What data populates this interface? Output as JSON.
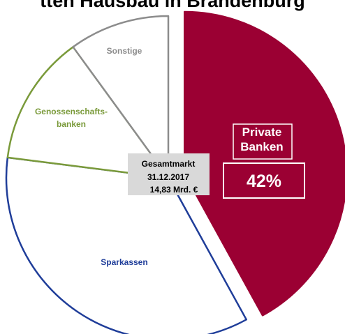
{
  "chart_data": {
    "type": "pie",
    "title": "Marktanteile Kreditinstitute: Kredite an Kunden Neubau/Ausbau Hausbau in Brandenburg",
    "visible_title": "tten Hausbau in Brandenburg",
    "center_box": {
      "line1": "Gesamtmarkt",
      "line2": "31.12.2017",
      "line3": "14,83 Mrd. €"
    },
    "slices": [
      {
        "name": "Private Banken",
        "name_lines": [
          "Private",
          "Banken"
        ],
        "value": 42,
        "value_label": "42%",
        "color": "#9b0033",
        "fill": "#9b0033",
        "exploded": true
      },
      {
        "name": "Sparkassen",
        "name_lines": [
          "Sparkassen"
        ],
        "value": 35,
        "color": "#1f3d99",
        "fill": "#ffffff"
      },
      {
        "name": "Genossenschaftsbanken",
        "name_lines": [
          "Genossenschafts-",
          "banken"
        ],
        "value": 13,
        "color": "#7a9a3a",
        "fill": "#ffffff"
      },
      {
        "name": "Sonstige",
        "name_lines": [
          "Sonstige"
        ],
        "value": 10,
        "color": "#8c8c8c",
        "fill": "#ffffff"
      }
    ]
  }
}
